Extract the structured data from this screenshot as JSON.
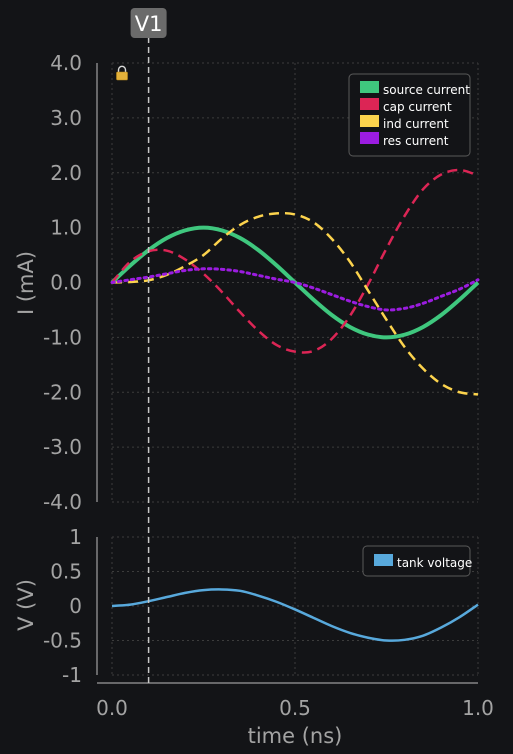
{
  "cursor": {
    "label": "V1",
    "x": 0.1
  },
  "chart_data": [
    {
      "type": "line",
      "title": "",
      "xlabel": "time (ns)",
      "ylabel": "I (mA)",
      "xlim": [
        0,
        1
      ],
      "ylim": [
        -4,
        4
      ],
      "grid": true,
      "legend": "top-right",
      "y_ticks": [
        "4.0",
        "3.0",
        "2.0",
        "1.0",
        "0.0",
        "-1.0",
        "-2.0",
        "-3.0",
        "-4.0"
      ],
      "x": [
        0,
        0.05,
        0.1,
        0.15,
        0.2,
        0.25,
        0.3,
        0.35,
        0.4,
        0.45,
        0.5,
        0.55,
        0.6,
        0.65,
        0.7,
        0.75,
        0.8,
        0.85,
        0.9,
        0.95,
        1.0
      ],
      "series": [
        {
          "name": "source current",
          "color": "#3fc77e",
          "style": "solid",
          "values": [
            0,
            0.31,
            0.59,
            0.81,
            0.95,
            1.0,
            0.95,
            0.81,
            0.59,
            0.31,
            0,
            -0.31,
            -0.59,
            -0.81,
            -0.95,
            -1.0,
            -0.95,
            -0.81,
            -0.59,
            -0.31,
            0
          ]
        },
        {
          "name": "cap current",
          "color": "#dc2555",
          "style": "dashed",
          "values": [
            0,
            0.38,
            0.57,
            0.58,
            0.42,
            0.16,
            -0.17,
            -0.54,
            -0.88,
            -1.14,
            -1.26,
            -1.25,
            -1.03,
            -0.61,
            -0.03,
            0.62,
            1.22,
            1.7,
            1.97,
            2.05,
            1.95
          ]
        },
        {
          "name": "ind current",
          "color": "#fcd34d",
          "style": "dashed",
          "values": [
            0,
            0.01,
            0.04,
            0.14,
            0.3,
            0.5,
            0.8,
            1.05,
            1.2,
            1.26,
            1.24,
            1.1,
            0.8,
            0.38,
            -0.15,
            -0.68,
            -1.18,
            -1.57,
            -1.85,
            -2.0,
            -2.04
          ]
        },
        {
          "name": "res current",
          "color": "#9b1ce0",
          "style": "dotted",
          "values": [
            0,
            0.05,
            0.1,
            0.16,
            0.22,
            0.25,
            0.24,
            0.2,
            0.13,
            0.06,
            0,
            -0.1,
            -0.22,
            -0.34,
            -0.44,
            -0.5,
            -0.47,
            -0.38,
            -0.25,
            -0.12,
            0.05
          ]
        }
      ]
    },
    {
      "type": "line",
      "title": "",
      "xlabel": "time (ns)",
      "ylabel": "V (V)",
      "xlim": [
        0,
        1
      ],
      "ylim": [
        -1,
        1
      ],
      "grid": true,
      "legend": "top-right",
      "y_ticks": [
        "1",
        "0.5",
        "0",
        "-0.5",
        "-1"
      ],
      "x_ticks": [
        "0.0",
        "0.5",
        "1.0"
      ],
      "x": [
        0,
        0.05,
        0.1,
        0.15,
        0.2,
        0.25,
        0.3,
        0.35,
        0.4,
        0.45,
        0.5,
        0.55,
        0.6,
        0.65,
        0.7,
        0.75,
        0.8,
        0.85,
        0.9,
        0.95,
        1.0
      ],
      "series": [
        {
          "name": "tank voltage",
          "color": "#58a9dc",
          "style": "solid",
          "values": [
            0,
            0.02,
            0.07,
            0.13,
            0.19,
            0.23,
            0.24,
            0.22,
            0.15,
            0.06,
            -0.05,
            -0.17,
            -0.29,
            -0.39,
            -0.46,
            -0.5,
            -0.49,
            -0.43,
            -0.31,
            -0.16,
            0.02
          ]
        }
      ]
    }
  ]
}
